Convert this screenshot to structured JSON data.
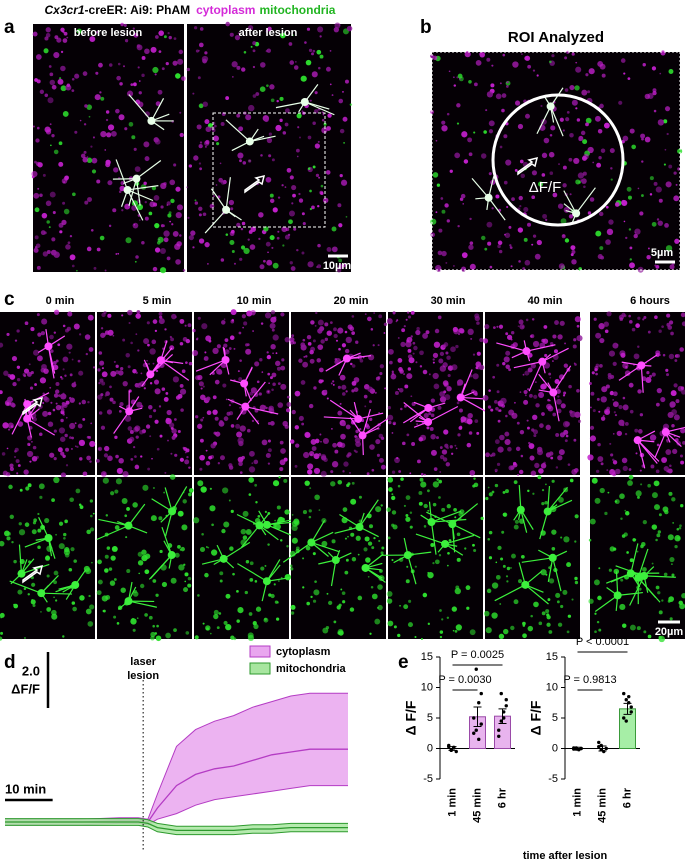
{
  "figure": {
    "panel_labels": [
      "a",
      "b",
      "c",
      "d",
      "e"
    ],
    "header": {
      "genotype_italic": "Cx3cr1",
      "genotype_rest": "-creER: Ai9: PhAM",
      "cytoplasm": "cytoplasm",
      "mitochondria": "mitochondria"
    },
    "a": {
      "before": "before lesion",
      "after": "after lesion",
      "scale": "10µm"
    },
    "b": {
      "title": "ROI Analyzed",
      "roi": "ΔF/F",
      "scale": "5µm"
    },
    "c": {
      "times": [
        "0 min",
        "5 min",
        "10 min",
        "20 min",
        "30 min",
        "40 min",
        "6 hours"
      ],
      "scale": "20µm"
    },
    "e_xlabel": "time after lesion"
  },
  "chart_data": [
    {
      "type": "line",
      "x": [
        0,
        8,
        16,
        24,
        28,
        30,
        32,
        36,
        40,
        44,
        48,
        52,
        56,
        60,
        64,
        68,
        72
      ],
      "xlim": [
        0,
        72
      ],
      "ylim": [
        -0.5,
        6.5
      ],
      "series": [
        {
          "name": "cytoplasm",
          "color": "#b43cc4",
          "fill": "#e9a6ef",
          "values": [
            0,
            0,
            0,
            0.05,
            0.05,
            0,
            0.5,
            1.3,
            1.7,
            1.9,
            2.0,
            2.2,
            2.4,
            2.5,
            2.6,
            2.6,
            2.6
          ],
          "band_upper": [
            0.1,
            0.1,
            0.1,
            0.15,
            0.15,
            0.1,
            1.0,
            2.7,
            3.3,
            3.6,
            3.8,
            4.1,
            4.3,
            4.5,
            4.6,
            4.6,
            4.6
          ],
          "band_lower": [
            -0.1,
            -0.1,
            -0.1,
            -0.05,
            -0.05,
            -0.1,
            0.1,
            0.3,
            0.6,
            0.8,
            0.9,
            1.0,
            1.1,
            1.2,
            1.3,
            1.3,
            1.3
          ]
        },
        {
          "name": "mitochondria",
          "color": "#2e9a2e",
          "fill": "#a8e6a0",
          "values": [
            0,
            0,
            0,
            0,
            0,
            -0.05,
            -0.2,
            -0.3,
            -0.3,
            -0.3,
            -0.3,
            -0.25,
            -0.25,
            -0.2,
            -0.2,
            -0.2,
            -0.2
          ],
          "band_upper": [
            0.12,
            0.12,
            0.12,
            0.12,
            0.12,
            0.08,
            -0.05,
            -0.15,
            -0.15,
            -0.15,
            -0.15,
            -0.1,
            -0.1,
            -0.05,
            -0.05,
            -0.05,
            -0.05
          ],
          "band_lower": [
            -0.12,
            -0.12,
            -0.12,
            -0.12,
            -0.12,
            -0.18,
            -0.35,
            -0.45,
            -0.45,
            -0.45,
            -0.45,
            -0.4,
            -0.4,
            -0.35,
            -0.35,
            -0.35,
            -0.35
          ]
        }
      ],
      "annotation": {
        "lines": [
          "laser",
          "lesion"
        ],
        "x": 29
      },
      "scale_bars": [
        {
          "value": 2,
          "label": "2.0",
          "unit": "ΔF/F"
        },
        {
          "value": 10,
          "label": "10 min"
        }
      ]
    },
    {
      "type": "bar",
      "ylabel": "Δ F/F",
      "categories": [
        "1 min",
        "45 min",
        "6 hr"
      ],
      "values": [
        0,
        5.2,
        5.3
      ],
      "errors": [
        0.3,
        1.6,
        1.2
      ],
      "color": "#e8b4ee",
      "edge": "#9a4aa8",
      "points": [
        [
          0.3,
          -0.3,
          0.2,
          -0.5,
          0.5,
          -0.2,
          0.1
        ],
        [
          2.5,
          13,
          1.5,
          9,
          5,
          3,
          7.5,
          4
        ],
        [
          2,
          9,
          5,
          7,
          3,
          4.5,
          6,
          8
        ]
      ],
      "ylim": [
        -5,
        15
      ],
      "yticks": [
        -5,
        0,
        5,
        10,
        15
      ],
      "comparisons": [
        {
          "pair": [
            0,
            1
          ],
          "label": "P = 0.0030"
        },
        {
          "pair": [
            0,
            2
          ],
          "label": "P = 0.0025"
        }
      ]
    },
    {
      "type": "bar",
      "ylabel": "Δ F/F",
      "categories": [
        "1 min",
        "45 min",
        "6 hr"
      ],
      "values": [
        0,
        0,
        6.5
      ],
      "errors": [
        0.2,
        0.4,
        0.9
      ],
      "color": "#a6eea6",
      "edge": "#3a9a3a",
      "points": [
        [
          -0.1,
          0.1,
          -0.2,
          0,
          0.1,
          -0.1
        ],
        [
          1,
          0.5,
          -0.5,
          0,
          0.3,
          -0.2
        ],
        [
          9,
          8,
          7.5,
          6,
          5,
          4.5,
          8.5,
          6.8
        ]
      ],
      "ylim": [
        -5,
        15
      ],
      "yticks": [
        -5,
        0,
        5,
        10,
        15
      ],
      "comparisons": [
        {
          "pair": [
            0,
            1
          ],
          "label": "P = 0.9813"
        },
        {
          "pair": [
            0,
            2
          ],
          "label": "P < 0.0001"
        }
      ]
    }
  ]
}
